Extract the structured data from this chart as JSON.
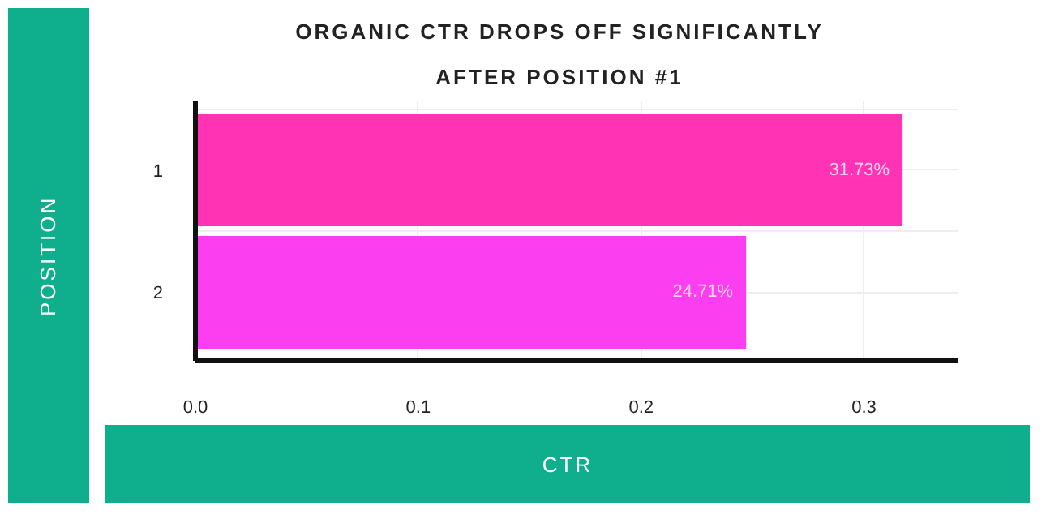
{
  "chart_data": {
    "type": "bar",
    "orientation": "horizontal",
    "title": "ORGANIC CTR DROPS OFF SIGNIFICANTLY AFTER POSITION #1",
    "xlabel": "CTR",
    "ylabel": "POSITION",
    "categories": [
      "1",
      "2"
    ],
    "values": [
      0.3173,
      0.2471
    ],
    "colors": [
      "#ff33b4",
      "#fb3ef0"
    ],
    "value_labels": [
      "31.73%",
      "24.71%"
    ],
    "xlim": [
      0,
      0.342
    ],
    "xticks": [
      {
        "value": 0,
        "label": "0.0"
      },
      0.1,
      0.2,
      0.3
    ],
    "grid": true
  }
}
